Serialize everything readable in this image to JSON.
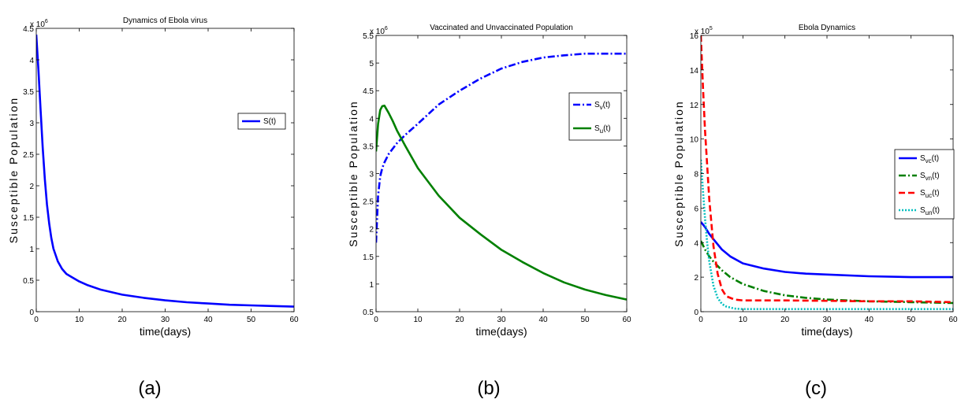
{
  "chart_data": [
    {
      "id": "a",
      "type": "line",
      "title": "Dynamics of Ebola virus",
      "xlabel": "time(days)",
      "ylabel": "Susceptible Population",
      "multiplier_base": "x 10",
      "multiplier_exp": "6",
      "xlim": [
        0,
        60
      ],
      "ylim": [
        0,
        4.5
      ],
      "xticks": [
        "0",
        "10",
        "20",
        "30",
        "40",
        "50",
        "60"
      ],
      "yticks": [
        "0",
        "0.5",
        "1",
        "1.5",
        "2",
        "2.5",
        "3",
        "3.5",
        "4",
        "4.5"
      ],
      "legend_position": "upper-right",
      "panel_label": "(a)",
      "series": [
        {
          "name": "S(t)",
          "sub": "",
          "suffix": "",
          "color": "#0000ff",
          "dash": "solid",
          "x": [
            0,
            0.5,
            1,
            1.5,
            2,
            2.5,
            3,
            3.5,
            4,
            5,
            6,
            7,
            8,
            10,
            12,
            15,
            20,
            25,
            30,
            35,
            40,
            45,
            50,
            55,
            60
          ],
          "y": [
            4.4,
            3.85,
            3.2,
            2.6,
            2.1,
            1.7,
            1.4,
            1.17,
            1.0,
            0.8,
            0.68,
            0.6,
            0.56,
            0.48,
            0.42,
            0.35,
            0.27,
            0.22,
            0.18,
            0.15,
            0.13,
            0.11,
            0.1,
            0.09,
            0.08
          ]
        }
      ]
    },
    {
      "id": "b",
      "type": "line",
      "title": "Vaccinated and Unvaccinated Population",
      "xlabel": "time(days)",
      "ylabel": "Susceptible Population",
      "multiplier_base": "x 10",
      "multiplier_exp": "6",
      "xlim": [
        0,
        60
      ],
      "ylim": [
        0.5,
        5.5
      ],
      "xticks": [
        "0",
        "10",
        "20",
        "30",
        "40",
        "50",
        "60"
      ],
      "yticks": [
        "0.5",
        "1",
        "1.5",
        "2",
        "2.5",
        "3",
        "3.5",
        "4",
        "4.5",
        "5",
        "5.5"
      ],
      "legend_position": "upper-right",
      "panel_label": "(b)",
      "series": [
        {
          "name": "S",
          "sub": "v",
          "suffix": "(t)",
          "color": "#0000ff",
          "dash": "dashdot",
          "x": [
            0,
            0.5,
            1,
            1.5,
            2,
            3,
            4,
            5,
            7,
            10,
            15,
            20,
            25,
            30,
            35,
            40,
            45,
            50,
            55,
            60
          ],
          "y": [
            1.75,
            2.6,
            2.95,
            3.1,
            3.2,
            3.35,
            3.45,
            3.55,
            3.7,
            3.9,
            4.25,
            4.5,
            4.72,
            4.9,
            5.02,
            5.1,
            5.14,
            5.17,
            5.17,
            5.17
          ]
        },
        {
          "name": "S",
          "sub": "u",
          "suffix": "(t)",
          "color": "#008000",
          "dash": "solid",
          "x": [
            0,
            0.5,
            1,
            1.5,
            2,
            3,
            4,
            5,
            7,
            10,
            15,
            20,
            25,
            30,
            35,
            40,
            45,
            50,
            55,
            60
          ],
          "y": [
            3.4,
            3.9,
            4.15,
            4.22,
            4.23,
            4.1,
            3.95,
            3.78,
            3.5,
            3.1,
            2.6,
            2.2,
            1.9,
            1.62,
            1.4,
            1.2,
            1.03,
            0.9,
            0.8,
            0.72
          ]
        }
      ]
    },
    {
      "id": "c",
      "type": "line",
      "title": "Ebola Dynamics",
      "xlabel": "time(days)",
      "ylabel": "Susceptible Population",
      "multiplier_base": "x 10",
      "multiplier_exp": "5",
      "xlim": [
        0,
        60
      ],
      "ylim": [
        0,
        16
      ],
      "xticks": [
        "0",
        "10",
        "20",
        "30",
        "40",
        "50",
        "60"
      ],
      "yticks": [
        "0",
        "2",
        "4",
        "6",
        "8",
        "10",
        "12",
        "14",
        "16"
      ],
      "legend_position": "right",
      "panel_label": "(c)",
      "series": [
        {
          "name": "S",
          "sub": "vc",
          "suffix": "(t)",
          "color": "#0000ff",
          "dash": "solid",
          "x": [
            0,
            1,
            2,
            3,
            5,
            7,
            10,
            15,
            20,
            25,
            30,
            40,
            50,
            60
          ],
          "y": [
            5.2,
            4.9,
            4.5,
            4.2,
            3.6,
            3.2,
            2.8,
            2.5,
            2.3,
            2.2,
            2.15,
            2.05,
            2.0,
            2.0
          ]
        },
        {
          "name": "S",
          "sub": "vn",
          "suffix": "(t)",
          "color": "#007f00",
          "dash": "dashdot",
          "x": [
            0,
            1,
            2,
            3,
            5,
            7,
            10,
            15,
            20,
            25,
            30,
            40,
            50,
            60
          ],
          "y": [
            4.1,
            3.6,
            3.2,
            2.9,
            2.4,
            2.0,
            1.6,
            1.2,
            0.95,
            0.8,
            0.7,
            0.6,
            0.55,
            0.5
          ]
        },
        {
          "name": "S",
          "sub": "uc",
          "suffix": "(t)",
          "color": "#ff0000",
          "dash": "dashed",
          "x": [
            0,
            0.5,
            1,
            1.5,
            2,
            3,
            4,
            5,
            6,
            8,
            10,
            20,
            30,
            40,
            50,
            60
          ],
          "y": [
            16,
            13,
            10.5,
            8.5,
            6.5,
            3.8,
            2.2,
            1.3,
            0.9,
            0.7,
            0.65,
            0.65,
            0.63,
            0.6,
            0.6,
            0.55
          ]
        },
        {
          "name": "S",
          "sub": "un",
          "suffix": "(t)",
          "color": "#00bfbf",
          "dash": "dotted",
          "x": [
            0,
            0.5,
            1,
            1.5,
            2,
            3,
            4,
            5,
            6,
            8,
            10,
            20,
            30,
            40,
            50,
            60
          ],
          "y": [
            8.8,
            7.0,
            5.4,
            4.0,
            2.9,
            1.5,
            0.8,
            0.45,
            0.3,
            0.18,
            0.15,
            0.15,
            0.15,
            0.15,
            0.15,
            0.15
          ]
        }
      ]
    }
  ]
}
